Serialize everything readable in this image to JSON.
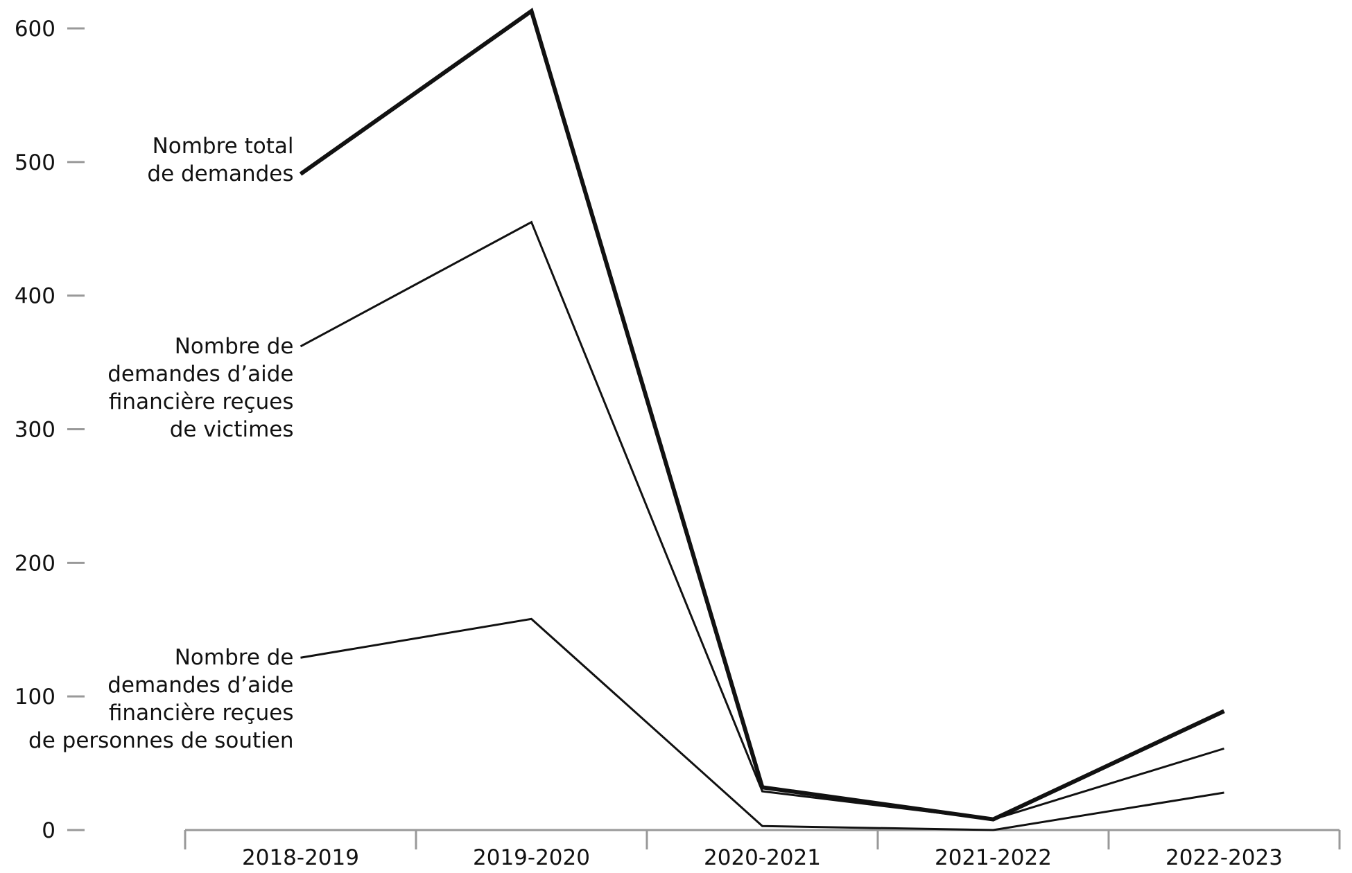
{
  "chart_data": {
    "type": "line",
    "categories": [
      "2018-2019",
      "2019-2020",
      "2020-2021",
      "2021-2022",
      "2022-2023"
    ],
    "series": [
      {
        "name": [
          "Nombre total",
          "de demandes"
        ],
        "color": "#111111",
        "values": [
          491,
          613,
          32,
          8,
          89
        ]
      },
      {
        "name": [
          "Nombre de",
          "demandes d’aide",
          "financière reçues",
          "de victimes"
        ],
        "color": "#111111",
        "values": [
          362,
          455,
          29,
          8,
          61
        ]
      },
      {
        "name": [
          "Nombre de",
          "demandes d’aide",
          "financière reçues",
          "de personnes de soutien"
        ],
        "color": "#111111",
        "values": [
          129,
          158,
          3,
          0,
          28
        ]
      }
    ],
    "ylim": [
      0,
      600
    ],
    "yticks": [
      0,
      100,
      200,
      300,
      400,
      500,
      600
    ],
    "grid": false
  }
}
